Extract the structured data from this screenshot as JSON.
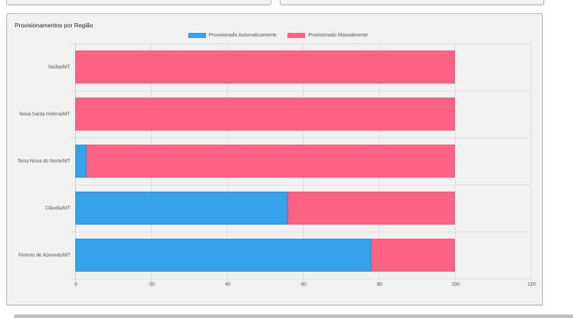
{
  "panel": {
    "title": "Provisionamentos por Região"
  },
  "legend": [
    {
      "label": "Provisionado Automaticamente",
      "color": "#36a2eb"
    },
    {
      "label": "Provisionado Manualmente",
      "color": "#ff6384"
    }
  ],
  "chart_data": {
    "type": "bar",
    "orientation": "horizontal",
    "stacked": true,
    "title": "Provisionamentos por Região",
    "categories": [
      "Itaúba/MT",
      "Nova Santa Helena/MT",
      "Terra Nova do Norte/MT",
      "Cláudia/MT",
      "Peixoto de Azevedo/MT"
    ],
    "series": [
      {
        "name": "Provisionado Automaticamente",
        "color": "#36a2eb",
        "values": [
          0,
          0,
          3,
          56,
          78
        ]
      },
      {
        "name": "Provisionado Manualmente",
        "color": "#ff6384",
        "values": [
          100,
          100,
          97,
          44,
          22
        ]
      }
    ],
    "xlabel": "",
    "ylabel": "",
    "xlim": [
      0,
      120
    ],
    "xticks": [
      "0",
      "20",
      "40",
      "60",
      "80",
      "100",
      "120"
    ],
    "grid": true,
    "legend_position": "top"
  }
}
